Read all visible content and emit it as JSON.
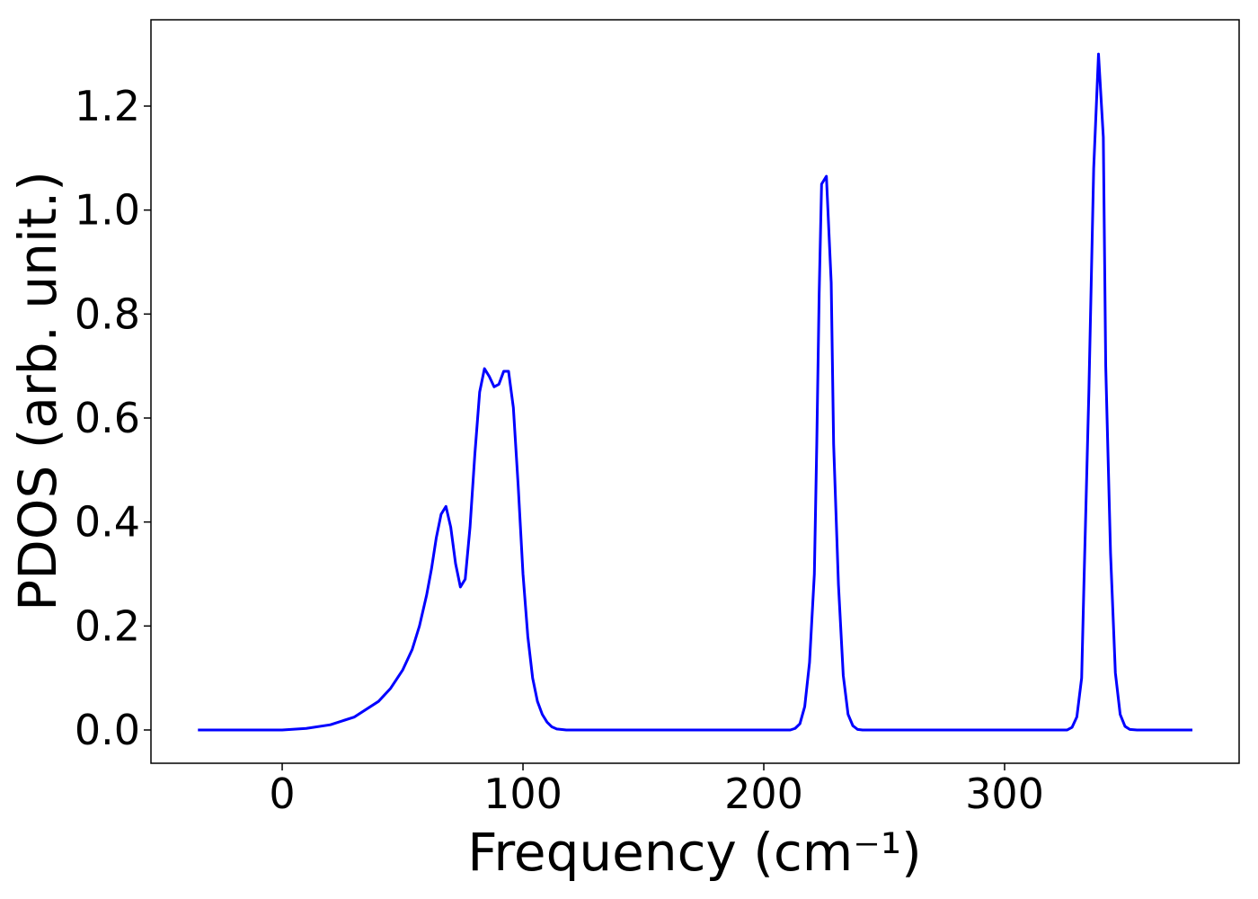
{
  "chart_data": {
    "type": "line",
    "xlabel": "Frequency (cm⁻¹)",
    "ylabel": "PDOS (arb. unit.)",
    "series": [
      {
        "color": "#0000ff",
        "x": [
          -35,
          0,
          10,
          20,
          30,
          40,
          45,
          50,
          54,
          57,
          60,
          62,
          64,
          66,
          68,
          70,
          72,
          74,
          76,
          78,
          80,
          82,
          84,
          86,
          88,
          90,
          92,
          94,
          96,
          98,
          100,
          102,
          104,
          106,
          108,
          110,
          112,
          114,
          118,
          211,
          213,
          215,
          217,
          219,
          221,
          222,
          223,
          224,
          226,
          228,
          229,
          231,
          233,
          235,
          237,
          239,
          241,
          326,
          328,
          330,
          332,
          333,
          335,
          337,
          339,
          341,
          342,
          344,
          346,
          348,
          350,
          352,
          355,
          378
        ],
        "values": [
          0,
          0,
          0.003,
          0.01,
          0.025,
          0.055,
          0.08,
          0.115,
          0.155,
          0.2,
          0.26,
          0.31,
          0.37,
          0.415,
          0.43,
          0.39,
          0.32,
          0.275,
          0.29,
          0.39,
          0.53,
          0.65,
          0.695,
          0.68,
          0.66,
          0.665,
          0.69,
          0.69,
          0.62,
          0.47,
          0.3,
          0.18,
          0.1,
          0.055,
          0.03,
          0.015,
          0.006,
          0.002,
          0,
          0,
          0.003,
          0.012,
          0.045,
          0.13,
          0.3,
          0.55,
          0.84,
          1.05,
          1.065,
          0.86,
          0.55,
          0.28,
          0.105,
          0.03,
          0.008,
          0.001,
          0,
          0,
          0.005,
          0.025,
          0.1,
          0.29,
          0.65,
          1.08,
          1.3,
          1.14,
          0.7,
          0.34,
          0.11,
          0.03,
          0.007,
          0.001,
          0,
          0
        ]
      }
    ],
    "xlim": [
      -54.5,
      397.4
    ],
    "ylim": [
      -0.064,
      1.366
    ],
    "xticks": [
      0,
      100,
      200,
      300
    ],
    "yticks": [
      {
        "value": 0,
        "label": "0.0"
      },
      {
        "value": 0.2,
        "label": "0.2"
      },
      {
        "value": 0.4,
        "label": "0.4"
      },
      {
        "value": 0.6,
        "label": "0.6"
      },
      {
        "value": 0.8,
        "label": "0.8"
      },
      {
        "value": 1.0,
        "label": "1.0"
      },
      {
        "value": 1.2,
        "label": "1.2"
      }
    ]
  }
}
